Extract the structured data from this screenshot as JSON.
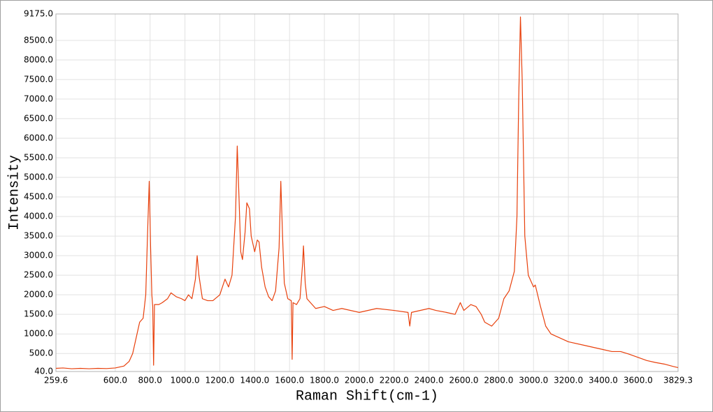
{
  "chart_data": {
    "type": "line",
    "x_label": "Raman Shift(cm-1)",
    "y_label": "Intensity",
    "color": "#e8400c",
    "grid": true,
    "xlim": [
      259.6,
      3829.3
    ],
    "ylim": [
      40,
      9175
    ],
    "xticks": [
      259.6,
      {
        "value": 600,
        "label": "600.0"
      },
      {
        "value": 800,
        "label": "800.0"
      },
      {
        "value": 1000,
        "label": "1000.0"
      },
      {
        "value": 1200,
        "label": "1200.0"
      },
      {
        "value": 1400,
        "label": "1400.0"
      },
      {
        "value": 1600,
        "label": "1600.0"
      },
      {
        "value": 1800,
        "label": "1800.0"
      },
      {
        "value": 2000,
        "label": "2000.0"
      },
      {
        "value": 2200,
        "label": "2200.0"
      },
      {
        "value": 2400,
        "label": "2400.0"
      },
      {
        "value": 2600,
        "label": "2600.0"
      },
      {
        "value": 2800,
        "label": "2800.0"
      },
      {
        "value": 3000,
        "label": "3000.0"
      },
      {
        "value": 3200,
        "label": "3200.0"
      },
      {
        "value": 3400,
        "label": "3400.0"
      },
      {
        "value": 3600,
        "label": "3600.0"
      },
      3829.3
    ],
    "yticks": [
      {
        "value": 40,
        "label": "40.0"
      },
      {
        "value": 500,
        "label": "500.0"
      },
      {
        "value": 1000,
        "label": "1000.0"
      },
      {
        "value": 1500,
        "label": "1500.0"
      },
      {
        "value": 2000,
        "label": "2000.0"
      },
      {
        "value": 2500,
        "label": "2500.0"
      },
      {
        "value": 3000,
        "label": "3000.0"
      },
      {
        "value": 3500,
        "label": "3500.0"
      },
      {
        "value": 4000,
        "label": "4000.0"
      },
      {
        "value": 4500,
        "label": "4500.0"
      },
      {
        "value": 5000,
        "label": "5000.0"
      },
      {
        "value": 5500,
        "label": "5500.0"
      },
      {
        "value": 6000,
        "label": "6000.0"
      },
      {
        "value": 6500,
        "label": "6500.0"
      },
      {
        "value": 7000,
        "label": "7000.0"
      },
      {
        "value": 7500,
        "label": "7500.0"
      },
      {
        "value": 8000,
        "label": "8000.0"
      },
      {
        "value": 8500,
        "label": "8500.0"
      },
      {
        "value": 9175,
        "label": "9175.0"
      }
    ],
    "x": [
      259.6,
      300,
      350,
      400,
      450,
      500,
      550,
      600,
      650,
      680,
      700,
      720,
      740,
      760,
      775,
      785,
      795,
      803,
      810,
      815,
      820,
      825,
      850,
      870,
      900,
      920,
      950,
      980,
      1000,
      1020,
      1040,
      1060,
      1070,
      1080,
      1100,
      1130,
      1160,
      1200,
      1230,
      1250,
      1270,
      1290,
      1300,
      1310,
      1320,
      1330,
      1345,
      1355,
      1370,
      1380,
      1400,
      1415,
      1425,
      1440,
      1460,
      1480,
      1500,
      1520,
      1540,
      1550,
      1560,
      1570,
      1590,
      1610,
      1615,
      1620,
      1640,
      1660,
      1675,
      1680,
      1690,
      1700,
      1720,
      1750,
      1800,
      1850,
      1900,
      2000,
      2100,
      2200,
      2280,
      2290,
      2300,
      2400,
      2440,
      2500,
      2550,
      2580,
      2600,
      2640,
      2670,
      2700,
      2720,
      2760,
      2800,
      2830,
      2860,
      2890,
      2905,
      2915,
      2925,
      2935,
      2950,
      2970,
      3000,
      3010,
      3040,
      3070,
      3100,
      3150,
      3200,
      3300,
      3400,
      3450,
      3500,
      3550,
      3600,
      3650,
      3700,
      3750,
      3800,
      3829.3
    ],
    "values": [
      120,
      130,
      110,
      120,
      110,
      120,
      115,
      130,
      180,
      300,
      500,
      900,
      1300,
      1400,
      2000,
      3500,
      4900,
      3200,
      2000,
      1700,
      200,
      1750,
      1750,
      1800,
      1900,
      2050,
      1950,
      1900,
      1850,
      2000,
      1900,
      2400,
      3000,
      2500,
      1900,
      1850,
      1850,
      2000,
      2400,
      2200,
      2500,
      4000,
      5800,
      4500,
      3100,
      2900,
      3600,
      4350,
      4200,
      3500,
      3100,
      3400,
      3350,
      2700,
      2200,
      1950,
      1850,
      2100,
      3200,
      4900,
      3500,
      2300,
      1900,
      1850,
      350,
      1800,
      1750,
      1900,
      2800,
      3250,
      2300,
      1900,
      1800,
      1650,
      1700,
      1600,
      1650,
      1550,
      1650,
      1600,
      1550,
      1200,
      1550,
      1650,
      1600,
      1550,
      1500,
      1800,
      1600,
      1750,
      1700,
      1500,
      1300,
      1200,
      1400,
      1900,
      2100,
      2600,
      4000,
      7000,
      9100,
      7500,
      3500,
      2500,
      2200,
      2250,
      1700,
      1200,
      1000,
      900,
      800,
      700,
      600,
      550,
      550,
      480,
      400,
      320,
      270,
      230,
      170,
      140
    ]
  }
}
